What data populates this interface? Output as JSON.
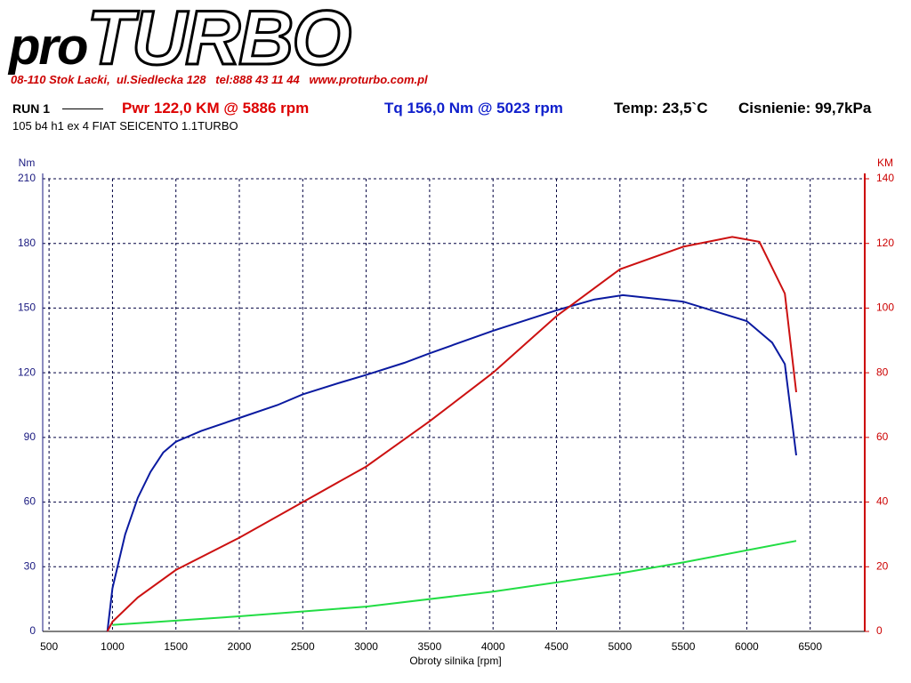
{
  "header": {
    "logo_a": "pro",
    "logo_b": "TURBO",
    "address": "08-110 Stok Lacki,  ul.Siedlecka 128   tel:888 43 11 44   www.proturbo.com.pl",
    "run": "RUN 1",
    "power": "Pwr  122,0 KM @ 5886 rpm",
    "torque": "Tq 156,0 Nm @ 5023 rpm",
    "temp": "Temp: 23,5`C",
    "pressure": "Cisnienie: 99,7kPa",
    "description": "105 b4 h1 ex  4 FIAT SEICENTO 1.1TURBO"
  },
  "chart_data": {
    "type": "line",
    "x_label": "Obroty silnika [rpm]",
    "y_label": "Nm",
    "y2_label": "KM",
    "xlim": [
      450,
      6930
    ],
    "xticks": [
      500,
      1000,
      1500,
      2000,
      2500,
      3000,
      3500,
      4000,
      4500,
      5000,
      5500,
      6000,
      6500
    ],
    "ylim": [
      0,
      210
    ],
    "yticks": [
      0,
      30,
      60,
      90,
      120,
      150,
      180,
      210
    ],
    "y2lim": [
      0,
      140
    ],
    "y2ticks": [
      0,
      20,
      40,
      60,
      80,
      100,
      120,
      140
    ],
    "grid": true,
    "series": [
      {
        "color": "#0a1aa0",
        "axis": "y",
        "x": [
          960,
          1000,
          1100,
          1200,
          1300,
          1400,
          1500,
          1700,
          2000,
          2300,
          2500,
          2800,
          3000,
          3300,
          3500,
          4000,
          4500,
          4800,
          5023,
          5500,
          6000,
          6200,
          6300,
          6390
        ],
        "values": [
          0,
          20,
          45,
          62,
          74,
          83,
          88,
          93,
          99,
          105,
          110,
          115.5,
          119,
          124.6,
          129,
          139.5,
          149,
          154,
          156,
          153,
          144,
          134,
          124,
          81.7
        ]
      },
      {
        "color": "#cc1111",
        "axis": "y2",
        "x": [
          960,
          1000,
          1200,
          1500,
          2000,
          2500,
          3000,
          3500,
          4000,
          4500,
          5000,
          5500,
          5886,
          6100,
          6300,
          6390
        ],
        "values": [
          0,
          3,
          10.5,
          19,
          29,
          40,
          51,
          65,
          80,
          97.5,
          112,
          119,
          122,
          120.5,
          104.5,
          74
        ]
      },
      {
        "color": "#22dd44",
        "axis": "y",
        "x": [
          1000,
          2000,
          3000,
          4000,
          5000,
          5500,
          6390
        ],
        "values": [
          3,
          7,
          11.5,
          18.5,
          27,
          32,
          42
        ]
      }
    ]
  }
}
